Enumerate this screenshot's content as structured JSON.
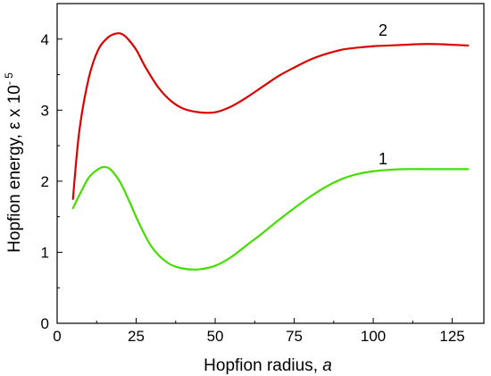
{
  "chart_data": {
    "type": "line",
    "title": "",
    "xlabel_main": "Hopfion radius, ",
    "xlabel_var": "a",
    "ylabel_main": "Hopfion energy, ε x 10",
    "ylabel_exp": "- 5",
    "xlim": [
      0,
      135
    ],
    "ylim": [
      0,
      4.5
    ],
    "x_ticks": [
      0,
      25,
      50,
      75,
      100,
      125
    ],
    "y_ticks": [
      0,
      1,
      2,
      3,
      4
    ],
    "grid": false,
    "legend": "none",
    "series": [
      {
        "label": "1",
        "color": "#44dd00",
        "x": [
          5,
          7,
          10,
          13,
          15,
          17,
          20,
          23,
          26,
          30,
          35,
          40,
          45,
          50,
          55,
          60,
          65,
          70,
          75,
          80,
          85,
          90,
          95,
          100,
          105,
          110,
          115,
          120,
          125,
          130
        ],
        "y": [
          1.62,
          1.8,
          2.05,
          2.17,
          2.2,
          2.16,
          1.98,
          1.7,
          1.4,
          1.07,
          0.85,
          0.77,
          0.76,
          0.81,
          0.93,
          1.1,
          1.27,
          1.45,
          1.62,
          1.78,
          1.92,
          2.03,
          2.1,
          2.14,
          2.16,
          2.17,
          2.17,
          2.17,
          2.17,
          2.17
        ]
      },
      {
        "label": "2",
        "color": "#dd0000",
        "x": [
          5,
          7,
          10,
          13,
          16,
          18,
          20,
          22,
          25,
          28,
          32,
          36,
          40,
          45,
          50,
          55,
          60,
          65,
          70,
          75,
          80,
          85,
          90,
          95,
          100,
          105,
          110,
          115,
          120,
          125,
          130
        ],
        "y": [
          1.75,
          2.7,
          3.45,
          3.85,
          4.02,
          4.07,
          4.08,
          4.02,
          3.85,
          3.6,
          3.32,
          3.13,
          3.02,
          2.97,
          2.97,
          3.05,
          3.18,
          3.33,
          3.48,
          3.6,
          3.71,
          3.79,
          3.85,
          3.88,
          3.9,
          3.91,
          3.92,
          3.93,
          3.93,
          3.92,
          3.91
        ]
      }
    ]
  }
}
